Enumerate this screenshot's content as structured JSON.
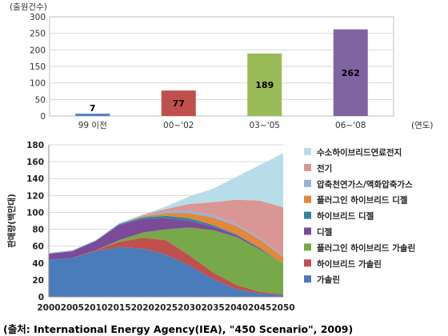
{
  "colors": {
    "bar_99": "#4F81BD",
    "bar_02": "#C0504D",
    "bar_05": "#9BBB59",
    "bar_08": "#8064A2",
    "hydrogen_fc": "#B7DEE8",
    "electric": "#D99694",
    "cng_lpg": "#95B3D7",
    "plugin_hybrid_diesel": "#E3883A",
    "hybrid_diesel": "#31859C",
    "diesel": "#7B4A98",
    "plugin_hybrid_gasoline": "#77A84A",
    "hybrid_gasoline": "#C0504D",
    "gasoline": "#4A7BBB"
  },
  "chart_data": [
    {
      "type": "bar",
      "title": "",
      "ylabel": "(출원건수)",
      "xlabel": "(연도)",
      "ylim": [
        0,
        300
      ],
      "yticks": [
        "0",
        "50",
        "100",
        "150",
        "200",
        "250",
        "300"
      ],
      "categories": [
        "99 이전",
        "00~'02",
        "03~'05",
        "06~'08"
      ],
      "values": [
        7,
        77,
        189,
        262
      ],
      "data_labels": [
        "7",
        "77",
        "189",
        "262"
      ],
      "grid": true
    },
    {
      "type": "area",
      "stacked": true,
      "title": "",
      "ylabel": "판매량(백만대)",
      "ylim": [
        0,
        180
      ],
      "yticks": [
        "0",
        "20",
        "40",
        "60",
        "80",
        "100",
        "120",
        "140",
        "160",
        "180"
      ],
      "x": [
        2000,
        2005,
        2010,
        2015,
        2020,
        2025,
        2030,
        2035,
        2040,
        2045,
        2050
      ],
      "xticks": [
        "2000",
        "2005",
        "2010",
        "2015",
        "2020",
        "2025",
        "2030",
        "2035",
        "2040",
        "2045",
        "2050"
      ],
      "legend_position": "right",
      "series": [
        {
          "name": "가솔린",
          "values": [
            44,
            46,
            54,
            59,
            57,
            50,
            37,
            21,
            9,
            4,
            2
          ]
        },
        {
          "name": "하이브리드 가솔린",
          "values": [
            0,
            0,
            1,
            6,
            13,
            17,
            12,
            8,
            5,
            2,
            1
          ]
        },
        {
          "name": "플러그인 하이브리드 가솔린",
          "values": [
            0,
            0,
            0,
            2,
            6,
            13,
            33,
            50,
            57,
            50,
            36
          ]
        },
        {
          "name": "디젤",
          "values": [
            7,
            8,
            11,
            18,
            16,
            13,
            8,
            4,
            2,
            1,
            0
          ]
        },
        {
          "name": "하이브리드 디젤",
          "values": [
            0,
            0,
            0,
            1,
            2,
            3,
            3,
            2,
            1,
            1,
            0
          ]
        },
        {
          "name": "플러그인 하이브리드 디젤",
          "values": [
            0,
            0,
            0,
            0,
            1,
            3,
            6,
            9,
            10,
            10,
            8
          ]
        },
        {
          "name": "압축천연가스/액화압축가스",
          "values": [
            1,
            1,
            1,
            1,
            1,
            2,
            3,
            3,
            2,
            2,
            2
          ]
        },
        {
          "name": "전기",
          "values": [
            0,
            0,
            0,
            0,
            1,
            3,
            8,
            15,
            29,
            44,
            57
          ]
        },
        {
          "name": "수소하이브리드연료전지",
          "values": [
            0,
            0,
            0,
            0,
            0,
            3,
            9,
            16,
            27,
            42,
            64
          ]
        }
      ],
      "legend_order": [
        "수소하이브리드연료전지",
        "전기",
        "압축천연가스/액화압축가스",
        "플러그인 하이브리드 디젤",
        "하이브리드 디젤",
        "디젤",
        "플러그인 하이브리드 가솔린",
        "하이브리드 가솔린",
        "가솔린"
      ]
    }
  ],
  "source": "(출처: International Energy Agency(IEA), \"450 Scenario\", 2009)"
}
